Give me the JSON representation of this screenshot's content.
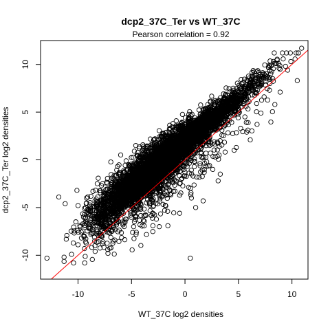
{
  "chart_data": {
    "type": "scatter",
    "title": "dcp2_37C_Ter vs WT_37C",
    "subtitle": "Pearson correlation =  0.92",
    "xlabel": "WT_37C log2 densities",
    "ylabel": "dcp2_37C_Ter log2 densities",
    "xlim": [
      -13.5,
      11.5
    ],
    "ylim": [
      -12.5,
      12.5
    ],
    "x_ticks": [
      -10,
      -5,
      0,
      5,
      10
    ],
    "y_ticks": [
      -10,
      -5,
      0,
      5,
      10
    ],
    "grid": false,
    "legend": "none",
    "marker": "open-circle",
    "pearson_r": 0.92,
    "reference_line": {
      "slope": 1,
      "intercept": 0,
      "color": "#ff0000"
    },
    "point_color": "#000000",
    "point_count_estimate": 6000,
    "points": [
      [
        -12.9,
        -10.3
      ],
      [
        -11.3,
        -10.2
      ],
      [
        0.5,
        -10.3
      ],
      [
        -9.4,
        -9.3
      ],
      [
        -10.0,
        -8.9
      ],
      [
        -10.6,
        -9.9
      ],
      [
        -8.8,
        -7.8
      ],
      [
        -7.6,
        -7.0
      ],
      [
        -6.9,
        -5.1
      ],
      [
        -6.4,
        -6.8
      ],
      [
        -5.8,
        -6.8
      ],
      [
        -4.2,
        -6.8
      ],
      [
        -3.0,
        -6.9
      ],
      [
        -1.6,
        -6.9
      ],
      [
        -0.5,
        -5.6
      ],
      [
        0.6,
        -4.0
      ],
      [
        1.7,
        -4.3
      ],
      [
        0.5,
        -3.0
      ],
      [
        -0.5,
        -3.7
      ],
      [
        -1.9,
        -5.3
      ],
      [
        -3.3,
        -3.8
      ],
      [
        -9.1,
        -3.9
      ],
      [
        -10.1,
        -3.2
      ],
      [
        -9.4,
        -5.1
      ],
      [
        -8.6,
        -3.3
      ],
      [
        -7.7,
        -2.5
      ],
      [
        -6.3,
        -0.7
      ],
      [
        -5.5,
        -0.1
      ],
      [
        -4.2,
        0.2
      ],
      [
        -4.6,
        1.5
      ],
      [
        -3.6,
        1.0
      ],
      [
        -2.6,
        1.6
      ],
      [
        -2.0,
        2.1
      ],
      [
        -1.2,
        2.5
      ],
      [
        -0.4,
        3.2
      ],
      [
        0.6,
        3.1
      ],
      [
        1.2,
        2.7
      ],
      [
        1.9,
        3.5
      ],
      [
        2.6,
        3.7
      ],
      [
        3.0,
        4.6
      ],
      [
        3.6,
        4.9
      ],
      [
        4.4,
        6.3
      ],
      [
        4.9,
        5.6
      ],
      [
        5.7,
        6.9
      ],
      [
        6.5,
        7.6
      ],
      [
        7.5,
        8.3
      ],
      [
        8.2,
        8.5
      ],
      [
        8.8,
        9.6
      ],
      [
        9.4,
        9.8
      ],
      [
        9.9,
        10.3
      ],
      [
        10.5,
        8.3
      ],
      [
        10.9,
        11.7
      ],
      [
        9.6,
        9.4
      ],
      [
        8.9,
        7.1
      ],
      [
        7.4,
        6.6
      ],
      [
        6.7,
        5.9
      ],
      [
        5.6,
        4.5
      ],
      [
        5.2,
        3.3
      ],
      [
        4.8,
        1.3
      ],
      [
        4.6,
        1.0
      ],
      [
        3.2,
        1.4
      ],
      [
        2.3,
        -0.6
      ],
      [
        2.6,
        -1.0
      ],
      [
        3.1,
        -2.2
      ],
      [
        3.3,
        -1.5
      ],
      [
        1.8,
        -1.3
      ],
      [
        1.1,
        -1.8
      ],
      [
        0.2,
        -0.7
      ],
      [
        -1.1,
        -2.4
      ],
      [
        -2.6,
        -3.4
      ],
      [
        -3.6,
        -4.5
      ],
      [
        -4.7,
        -5.5
      ],
      [
        -5.5,
        -6.2
      ],
      [
        -6.8,
        -7.3
      ],
      [
        -7.7,
        -8.8
      ],
      [
        -8.4,
        -9.6
      ],
      [
        -9.3,
        -8.6
      ],
      [
        -9.8,
        -7.0
      ],
      [
        -8.0,
        -6.0
      ],
      [
        -6.6,
        -4.6
      ],
      [
        -5.1,
        -3.0
      ],
      [
        -4.1,
        -2.0
      ],
      [
        -3.1,
        -1.1
      ],
      [
        -2.1,
        -0.2
      ],
      [
        -1.0,
        0.6
      ],
      [
        0.0,
        1.2
      ],
      [
        1.0,
        1.9
      ],
      [
        2.0,
        2.5
      ],
      [
        2.9,
        3.3
      ],
      [
        4.0,
        4.2
      ],
      [
        -10.0,
        -4.8
      ],
      [
        -9.2,
        -4.0
      ],
      [
        -8.7,
        -5.9
      ],
      [
        -7.5,
        -4.2
      ],
      [
        -6.0,
        -3.0
      ],
      [
        -5.4,
        -1.6
      ],
      [
        -3.0,
        0.5
      ],
      [
        -1.4,
        1.8
      ],
      [
        -0.1,
        2.4
      ],
      [
        1.4,
        3.9
      ],
      [
        2.3,
        4.4
      ],
      [
        3.7,
        5.6
      ],
      [
        -4.8,
        -7.0
      ],
      [
        -2.4,
        -7.0
      ],
      [
        1.0,
        -5.0
      ],
      [
        -7.2,
        -9.8
      ],
      [
        -10.2,
        -6.5
      ],
      [
        -8.2,
        -2.5
      ],
      [
        -11.8,
        -3.9
      ],
      [
        -11.2,
        -4.6
      ],
      [
        6.1,
        2.1
      ],
      [
        7.1,
        4.9
      ],
      [
        7.9,
        7.3
      ],
      [
        8.4,
        5.8
      ],
      [
        5.9,
        3.9
      ]
    ]
  }
}
